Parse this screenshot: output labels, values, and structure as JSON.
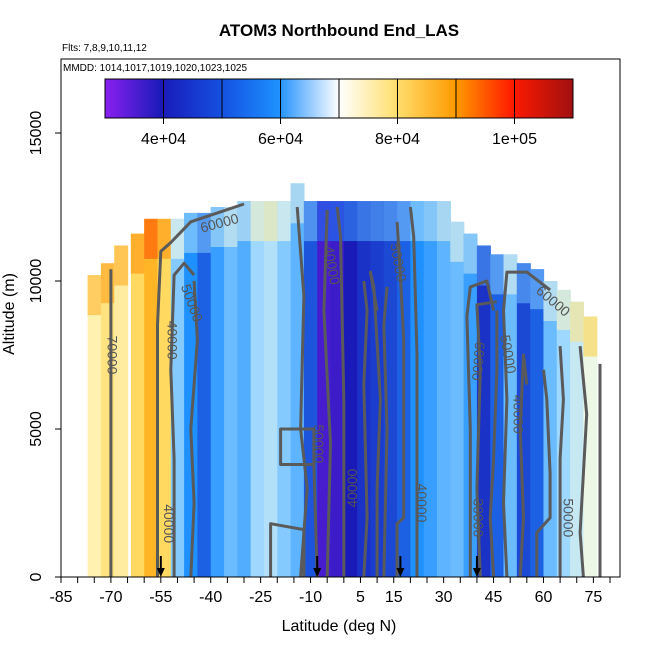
{
  "chart_data": {
    "type": "heatmap",
    "title": "ATOM3 Northbound End_LAS",
    "subtitle_flights": "Flts: 7,8,9,10,11,12",
    "subtitle_dates": "MMDD: 1014,1017,1019,1020,1023,1025",
    "xlabel": "Latitude (deg N)",
    "ylabel": "Altitude (m)",
    "xlim": [
      -85,
      83
    ],
    "ylim": [
      0,
      17500
    ],
    "xticks_minor": [
      -85,
      -80,
      -75,
      -70,
      -65,
      -60,
      -55,
      -50,
      -45,
      -40,
      -35,
      -30,
      -25,
      -20,
      -15,
      -10,
      -5,
      0,
      5,
      10,
      15,
      20,
      25,
      30,
      35,
      40,
      45,
      50,
      55,
      60,
      65,
      70,
      75,
      80
    ],
    "xtick_labels": [
      "-85",
      "-70",
      "-55",
      "-40",
      "-25",
      "-10",
      "5",
      "15",
      "30",
      "45",
      "60",
      "75"
    ],
    "ytick_labels": [
      "0",
      "5000",
      "10000",
      "15000"
    ],
    "colorbar": {
      "range": [
        30000,
        110000
      ],
      "breaks": [
        30000,
        40000,
        50000,
        60000,
        70000,
        80000,
        90000,
        100000,
        110000
      ],
      "tick_labels": [
        "4e+04",
        "6e+04",
        "8e+04",
        "1e+05"
      ],
      "colors": [
        "#8a20f0",
        "#1a1ab8",
        "#1e90ff",
        "#9fd8ff",
        "#ffffe0",
        "#ffd040",
        "#ff8c00",
        "#ff1a00",
        "#a01010"
      ]
    },
    "arrows_latitude": [
      -55,
      -8,
      17,
      40
    ],
    "contour_labels": [
      "60000",
      "50000",
      "40000",
      "50000",
      "60000",
      "70000",
      "40000",
      "50000",
      "40000",
      "40000",
      "40000",
      "60000",
      "50000",
      "40000",
      "30000",
      "50000"
    ],
    "columns": [
      {
        "x": -75,
        "top": 10200,
        "v": 73000
      },
      {
        "x": -71,
        "top": 10600,
        "v": 76000
      },
      {
        "x": -67,
        "top": 11200,
        "v": 74000
      },
      {
        "x": -62,
        "top": 11600,
        "v": 78000
      },
      {
        "x": -58,
        "top": 12100,
        "v": 84000
      },
      {
        "x": -54,
        "top": 12100,
        "v": 78000
      },
      {
        "x": -50,
        "top": 12100,
        "v": 58000
      },
      {
        "x": -46,
        "top": 12300,
        "v": 50000
      },
      {
        "x": -42,
        "top": 12300,
        "v": 46000
      },
      {
        "x": -38,
        "top": 12500,
        "v": 52000
      },
      {
        "x": -34,
        "top": 12500,
        "v": 56000
      },
      {
        "x": -30,
        "top": 12700,
        "v": 54000
      },
      {
        "x": -26,
        "top": 12700,
        "v": 60000
      },
      {
        "x": -22,
        "top": 12700,
        "v": 62000
      },
      {
        "x": -18,
        "top": 12700,
        "v": 58000
      },
      {
        "x": -14,
        "top": 13300,
        "v": 55000
      },
      {
        "x": -10,
        "top": 12700,
        "v": 45000
      },
      {
        "x": -6,
        "top": 12700,
        "v": 36000
      },
      {
        "x": -2,
        "top": 12700,
        "v": 37000
      },
      {
        "x": 2,
        "top": 12700,
        "v": 40000
      },
      {
        "x": 6,
        "top": 12700,
        "v": 42000
      },
      {
        "x": 10,
        "top": 12700,
        "v": 43000
      },
      {
        "x": 14,
        "top": 12700,
        "v": 44000
      },
      {
        "x": 18,
        "top": 12700,
        "v": 46000
      },
      {
        "x": 22,
        "top": 12700,
        "v": 50000
      },
      {
        "x": 26,
        "top": 12700,
        "v": 52000
      },
      {
        "x": 30,
        "top": 12700,
        "v": 55000
      },
      {
        "x": 34,
        "top": 12000,
        "v": 56000
      },
      {
        "x": 38,
        "top": 11600,
        "v": 52000
      },
      {
        "x": 42,
        "top": 11200,
        "v": 42000
      },
      {
        "x": 46,
        "top": 10900,
        "v": 46000
      },
      {
        "x": 50,
        "top": 10900,
        "v": 56000
      },
      {
        "x": 54,
        "top": 10600,
        "v": 44000
      },
      {
        "x": 58,
        "top": 10400,
        "v": 46000
      },
      {
        "x": 62,
        "top": 10000,
        "v": 56000
      },
      {
        "x": 66,
        "top": 9700,
        "v": 60000
      },
      {
        "x": 70,
        "top": 9300,
        "v": 64000
      },
      {
        "x": 74,
        "top": 8800,
        "v": 68000
      }
    ]
  }
}
